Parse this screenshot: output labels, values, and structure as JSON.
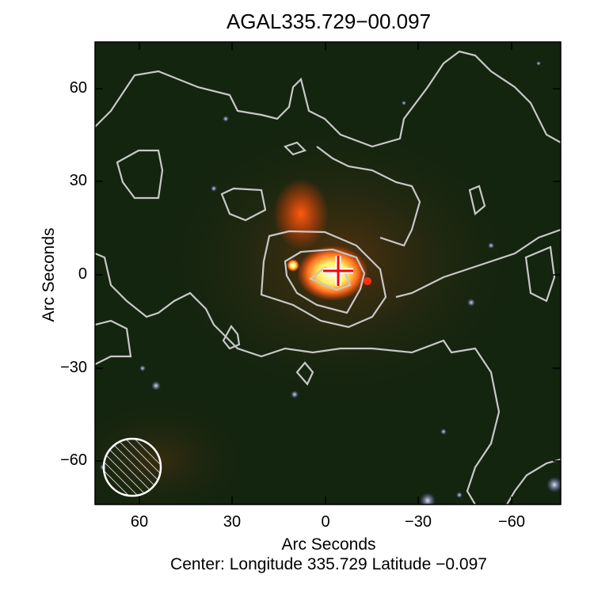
{
  "chart_data": {
    "type": "heatmap",
    "title": "AGAL335.729−00.097",
    "xlabel": "Arc Seconds",
    "ylabel": "Arc Seconds",
    "subtitle": "Center:  Longitude 335.729 Latitude −0.097",
    "xlim": [
      75,
      -75
    ],
    "ylim": [
      -75,
      75
    ],
    "xticks": [
      60,
      30,
      0,
      -30,
      -60
    ],
    "yticks": [
      60,
      30,
      0,
      -30,
      -60
    ],
    "xtick_labels": [
      "60",
      "30",
      "0",
      "−30",
      "−60"
    ],
    "ytick_labels": [
      "60",
      "30",
      "0",
      "−30",
      "−60"
    ],
    "image": "three-colour infrared composite with grey contours",
    "contour_color": "#c8c8c8",
    "marker": {
      "type": "cross",
      "x": -4,
      "y": 1,
      "color": "#ff0000"
    },
    "beam": {
      "x": 62,
      "y": -62,
      "style": "hatched circle",
      "color": "#ffffff"
    }
  }
}
